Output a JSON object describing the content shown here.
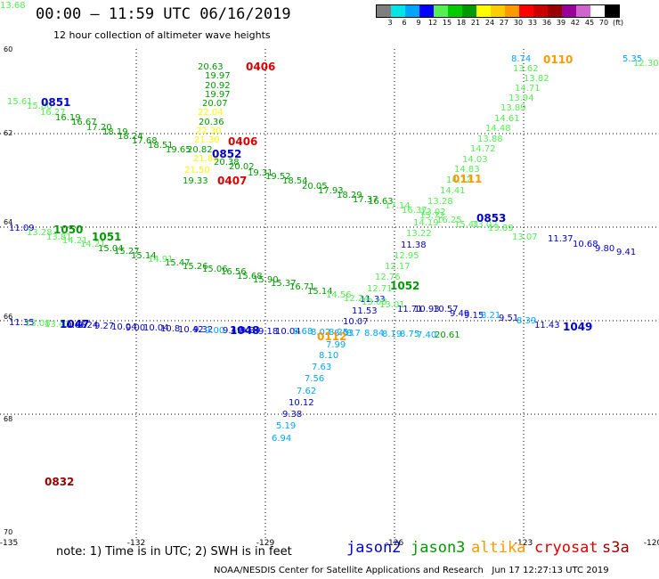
{
  "title": "00:00 – 11:59 UTC 06/16/2019",
  "subtitle": "12 hour collection of altimeter wave heights",
  "legend": {
    "colors": [
      "#7f7f7f",
      "#00e5e5",
      "#00a5ff",
      "#0000ff",
      "#55ee55",
      "#00cc00",
      "#009900",
      "#ffff00",
      "#ffcc00",
      "#ff9900",
      "#ff0000",
      "#cc0000",
      "#990000",
      "#990099",
      "#cc66cc",
      "#ffffff",
      "#000000"
    ],
    "labels": [
      "3",
      "6",
      "9",
      "12",
      "15",
      "18",
      "21",
      "24",
      "27",
      "30",
      "33",
      "36",
      "39",
      "42",
      "45",
      "70",
      "(ft)"
    ]
  },
  "axes": {
    "lon_ticks": [
      "-135",
      "-132",
      "-129",
      "-126",
      "-123",
      "-120"
    ],
    "lat_ticks": [
      "60",
      "62",
      "64",
      "66",
      "68",
      "70"
    ]
  },
  "satellites": {
    "jason2": {
      "name": "jason2",
      "color": "#0000cc"
    },
    "jason3": {
      "name": "jason3",
      "color": "#009900"
    },
    "altika": {
      "name": "altika",
      "color": "#ff9900"
    },
    "cryosat": {
      "name": "cryosat",
      "color": "#dd0000"
    },
    "s3a": {
      "name": "s3a",
      "color": "#990000"
    }
  },
  "note": "note: 1) Time is in UTC; 2) SWH is in feet",
  "credit": "NOAA/NESDIS Center for Satellite Applications and Research   Jun 17 12:27:13 UTC 2019",
  "time_labels": [
    {
      "text": "0406",
      "color": "#dd0000"
    },
    {
      "text": "0851",
      "color": "#0000cc"
    },
    {
      "text": "0406",
      "color": "#dd0000"
    },
    {
      "text": "0852",
      "color": "#0000cc"
    },
    {
      "text": "0407",
      "color": "#dd0000"
    },
    {
      "text": "0110",
      "color": "#ff9900"
    },
    {
      "text": "0111",
      "color": "#ff9900"
    },
    {
      "text": "0853",
      "color": "#0000cc"
    },
    {
      "text": "1050",
      "color": "#009900"
    },
    {
      "text": "1051",
      "color": "#009900"
    },
    {
      "text": "1052",
      "color": "#009900"
    },
    {
      "text": "1047",
      "color": "#0000cc"
    },
    {
      "text": "1048",
      "color": "#0000cc"
    },
    {
      "text": "1049",
      "color": "#0000cc"
    },
    {
      "text": "0112",
      "color": "#ff9900"
    },
    {
      "text": "0832",
      "color": "#990000"
    }
  ],
  "wave_labels": [
    {
      "t": "20.63",
      "c": "#009900"
    },
    {
      "t": "19.97",
      "c": "#009900"
    },
    {
      "t": "20.92",
      "c": "#009900"
    },
    {
      "t": "19.97",
      "c": "#009900"
    },
    {
      "t": "20.07",
      "c": "#009900"
    },
    {
      "t": "22.04",
      "c": "#ffff00"
    },
    {
      "t": "20.36",
      "c": "#009900"
    },
    {
      "t": "22.30",
      "c": "#ffff00"
    },
    {
      "t": "21.30",
      "c": "#ffff00"
    },
    {
      "t": "20.82",
      "c": "#009900"
    },
    {
      "t": "21.80",
      "c": "#ffff00"
    },
    {
      "t": "20.38",
      "c": "#009900"
    },
    {
      "t": "21.50",
      "c": "#ffff00"
    },
    {
      "t": "20.02",
      "c": "#009900"
    },
    {
      "t": "19.33",
      "c": "#009900"
    },
    {
      "t": "15.61",
      "c": "#55ee55"
    },
    {
      "t": "15.80",
      "c": "#55ee55"
    },
    {
      "t": "16.27",
      "c": "#55ee55"
    },
    {
      "t": "16.19",
      "c": "#009900"
    },
    {
      "t": "16.67",
      "c": "#009900"
    },
    {
      "t": "17.20",
      "c": "#009900"
    },
    {
      "t": "18.19",
      "c": "#009900"
    },
    {
      "t": "18.24",
      "c": "#009900"
    },
    {
      "t": "17.68",
      "c": "#009900"
    },
    {
      "t": "18.51",
      "c": "#009900"
    },
    {
      "t": "19.65",
      "c": "#009900"
    },
    {
      "t": "19.31",
      "c": "#009900"
    },
    {
      "t": "19.52",
      "c": "#009900"
    },
    {
      "t": "18.54",
      "c": "#009900"
    },
    {
      "t": "20.05",
      "c": "#009900"
    },
    {
      "t": "17.93",
      "c": "#009900"
    },
    {
      "t": "18.29",
      "c": "#009900"
    },
    {
      "t": "17.37",
      "c": "#009900"
    },
    {
      "t": "16.63",
      "c": "#009900"
    },
    {
      "t": "17.14",
      "c": "#55ee55"
    },
    {
      "t": "16.37",
      "c": "#55ee55"
    },
    {
      "t": "15.72",
      "c": "#55ee55"
    },
    {
      "t": "16.25",
      "c": "#55ee55"
    },
    {
      "t": "15.41",
      "c": "#55ee55"
    },
    {
      "t": "13.02",
      "c": "#55ee55"
    },
    {
      "t": "13.89",
      "c": "#55ee55"
    },
    {
      "t": "13.07",
      "c": "#55ee55"
    },
    {
      "t": "11.37",
      "c": "#0000cc"
    },
    {
      "t": "10.68",
      "c": "#0000cc"
    },
    {
      "t": "9.80",
      "c": "#0000cc"
    },
    {
      "t": "9.41",
      "c": "#0000cc"
    },
    {
      "t": "8.74",
      "c": "#00a5ff"
    },
    {
      "t": "13.62",
      "c": "#55ee55"
    },
    {
      "t": "13.82",
      "c": "#55ee55"
    },
    {
      "t": "14.71",
      "c": "#55ee55"
    },
    {
      "t": "13.94",
      "c": "#55ee55"
    },
    {
      "t": "13.89",
      "c": "#55ee55"
    },
    {
      "t": "14.61",
      "c": "#55ee55"
    },
    {
      "t": "14.48",
      "c": "#55ee55"
    },
    {
      "t": "13.88",
      "c": "#55ee55"
    },
    {
      "t": "14.72",
      "c": "#55ee55"
    },
    {
      "t": "14.03",
      "c": "#55ee55"
    },
    {
      "t": "14.83",
      "c": "#55ee55"
    },
    {
      "t": "14.72",
      "c": "#55ee55"
    },
    {
      "t": "14.41",
      "c": "#55ee55"
    },
    {
      "t": "13.28",
      "c": "#55ee55"
    },
    {
      "t": "13.02",
      "c": "#55ee55"
    },
    {
      "t": "14.19",
      "c": "#55ee55"
    },
    {
      "t": "13.22",
      "c": "#55ee55"
    },
    {
      "t": "11.38",
      "c": "#0000cc"
    },
    {
      "t": "12.95",
      "c": "#55ee55"
    },
    {
      "t": "12.17",
      "c": "#55ee55"
    },
    {
      "t": "12.76",
      "c": "#55ee55"
    },
    {
      "t": "12.71",
      "c": "#55ee55"
    },
    {
      "t": "11.33",
      "c": "#0000cc"
    },
    {
      "t": "11.53",
      "c": "#0000cc"
    },
    {
      "t": "10.07",
      "c": "#0000cc"
    },
    {
      "t": "8.63",
      "c": "#00a5ff"
    },
    {
      "t": "7.99",
      "c": "#00a5ff"
    },
    {
      "t": "8.10",
      "c": "#00a5ff"
    },
    {
      "t": "7.63",
      "c": "#00a5ff"
    },
    {
      "t": "7.56",
      "c": "#00a5ff"
    },
    {
      "t": "7.62",
      "c": "#00a5ff"
    },
    {
      "t": "10.12",
      "c": "#0000cc"
    },
    {
      "t": "9.38",
      "c": "#0000cc"
    },
    {
      "t": "5.19",
      "c": "#00a5ff"
    },
    {
      "t": "6.94",
      "c": "#00a5ff"
    },
    {
      "t": "5.35",
      "c": "#00a5ff"
    },
    {
      "t": "12.30",
      "c": "#55ee55"
    },
    {
      "t": "11.09",
      "c": "#0000cc"
    },
    {
      "t": "13.28",
      "c": "#55ee55"
    },
    {
      "t": "13.81",
      "c": "#55ee55"
    },
    {
      "t": "14.21",
      "c": "#55ee55"
    },
    {
      "t": "14.21",
      "c": "#55ee55"
    },
    {
      "t": "15.04",
      "c": "#009900"
    },
    {
      "t": "15.27",
      "c": "#009900"
    },
    {
      "t": "15.14",
      "c": "#009900"
    },
    {
      "t": "14.91",
      "c": "#55ee55"
    },
    {
      "t": "15.47",
      "c": "#009900"
    },
    {
      "t": "15.26",
      "c": "#009900"
    },
    {
      "t": "15.06",
      "c": "#009900"
    },
    {
      "t": "16.56",
      "c": "#009900"
    },
    {
      "t": "15.68",
      "c": "#009900"
    },
    {
      "t": "15.90",
      "c": "#009900"
    },
    {
      "t": "15.37",
      "c": "#009900"
    },
    {
      "t": "16.71",
      "c": "#009900"
    },
    {
      "t": "15.14",
      "c": "#009900"
    },
    {
      "t": "14.56",
      "c": "#55ee55"
    },
    {
      "t": "12.24",
      "c": "#55ee55"
    },
    {
      "t": "13.08",
      "c": "#55ee55"
    },
    {
      "t": "13.01",
      "c": "#55ee55"
    },
    {
      "t": "11.71",
      "c": "#0000cc"
    },
    {
      "t": "10.93",
      "c": "#0000cc"
    },
    {
      "t": "10.57",
      "c": "#0000cc"
    },
    {
      "t": "9.49",
      "c": "#0000cc"
    },
    {
      "t": "9.15",
      "c": "#0000cc"
    },
    {
      "t": "8.21",
      "c": "#00a5ff"
    },
    {
      "t": "9.51",
      "c": "#0000cc"
    },
    {
      "t": "8.39",
      "c": "#00a5ff"
    },
    {
      "t": "11.43",
      "c": "#0000cc"
    },
    {
      "t": "11.35",
      "c": "#0000cc"
    },
    {
      "t": "13.08",
      "c": "#55ee55"
    },
    {
      "t": "13.41",
      "c": "#55ee55"
    },
    {
      "t": "10.66",
      "c": "#0000cc"
    },
    {
      "t": "9.24",
      "c": "#0000cc"
    },
    {
      "t": "9.27",
      "c": "#0000cc"
    },
    {
      "t": "10.04",
      "c": "#0000cc"
    },
    {
      "t": "9.00",
      "c": "#0000cc"
    },
    {
      "t": "10.04",
      "c": "#0000cc"
    },
    {
      "t": "10.8",
      "c": "#0000cc"
    },
    {
      "t": "10.42",
      "c": "#0000cc"
    },
    {
      "t": "9.32",
      "c": "#0000cc"
    },
    {
      "t": "9.00",
      "c": "#00a5ff"
    },
    {
      "t": "9.49",
      "c": "#0000cc"
    },
    {
      "t": "9.84",
      "c": "#0000cc"
    },
    {
      "t": "9.18",
      "c": "#0000cc"
    },
    {
      "t": "10.04",
      "c": "#0000cc"
    },
    {
      "t": "8.68",
      "c": "#00a5ff"
    },
    {
      "t": "8.02",
      "c": "#00a5ff"
    },
    {
      "t": "8.25",
      "c": "#00a5ff"
    },
    {
      "t": "8.7",
      "c": "#00a5ff"
    },
    {
      "t": "8.84",
      "c": "#00a5ff"
    },
    {
      "t": "8.19",
      "c": "#00a5ff"
    },
    {
      "t": "8.75",
      "c": "#00a5ff"
    },
    {
      "t": "7.40",
      "c": "#00a5ff"
    },
    {
      "t": "20.61",
      "c": "#009900"
    },
    {
      "t": "13.68",
      "c": "#55ee55"
    }
  ]
}
